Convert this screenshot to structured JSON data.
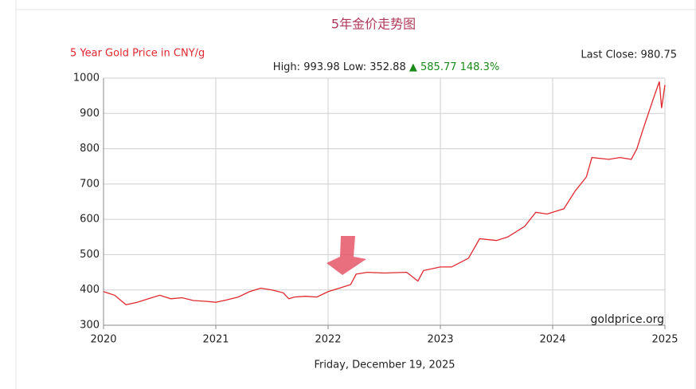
{
  "chart_data": {
    "type": "line",
    "title": "5年金价走势图",
    "subtitle": "5 Year Gold Price in CNY/g",
    "stats": {
      "high": "High: 993.98",
      "low": "Low: 352.88",
      "arrow": "▲",
      "change": "585.77 148.3%"
    },
    "last_close": "Last Close: 980.75",
    "source": "goldprice.org",
    "xlabel": "Friday, December 19, 2025",
    "x": [
      2020.0,
      2020.05,
      2020.1,
      2020.2,
      2020.3,
      2020.4,
      2020.5,
      2020.6,
      2020.7,
      2020.8,
      2020.9,
      2021.0,
      2021.1,
      2021.2,
      2021.3,
      2021.4,
      2021.5,
      2021.6,
      2021.65,
      2021.7,
      2021.8,
      2021.9,
      2022.0,
      2022.1,
      2022.2,
      2022.25,
      2022.35,
      2022.5,
      2022.7,
      2022.8,
      2022.85,
      2023.0,
      2023.1,
      2023.25,
      2023.35,
      2023.5,
      2023.6,
      2023.75,
      2023.85,
      2023.95,
      2024.1,
      2024.2,
      2024.3,
      2024.35,
      2024.5,
      2024.6,
      2024.7,
      2024.75,
      2024.8,
      2024.9,
      2024.95,
      2024.97,
      2025.0
    ],
    "values": [
      395,
      390,
      385,
      358,
      365,
      375,
      385,
      375,
      378,
      370,
      368,
      365,
      372,
      380,
      395,
      405,
      400,
      392,
      375,
      380,
      382,
      380,
      395,
      405,
      415,
      445,
      450,
      448,
      450,
      425,
      455,
      465,
      465,
      490,
      545,
      540,
      550,
      580,
      620,
      615,
      630,
      680,
      720,
      775,
      770,
      775,
      770,
      800,
      850,
      945,
      990,
      915,
      980.75
    ],
    "color": "#e0282e",
    "xlim": [
      2020,
      2025
    ],
    "xticks": [
      2020,
      2021,
      2022,
      2023,
      2024,
      2025
    ],
    "ylim": [
      300,
      1000
    ],
    "yticks": [
      300,
      400,
      500,
      600,
      700,
      800,
      900,
      1000
    ],
    "grid": true
  }
}
